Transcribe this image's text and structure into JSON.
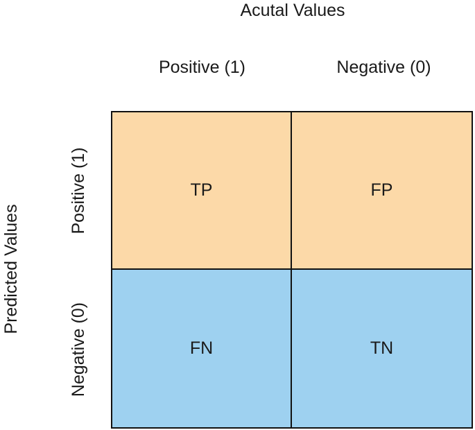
{
  "axes": {
    "actual_title": "Acutal Values",
    "predicted_title": "Predicted Values"
  },
  "columns": {
    "positive": "Positive (1)",
    "negative": "Negative (0)"
  },
  "rows": {
    "positive": "Positive (1)",
    "negative": "Negative (0)"
  },
  "cells": {
    "tp": "TP",
    "fp": "FP",
    "fn": "FN",
    "tn": "TN"
  },
  "colors": {
    "positive_row": "#fcd9a8",
    "negative_row": "#9ed1f0",
    "border": "#111111"
  }
}
